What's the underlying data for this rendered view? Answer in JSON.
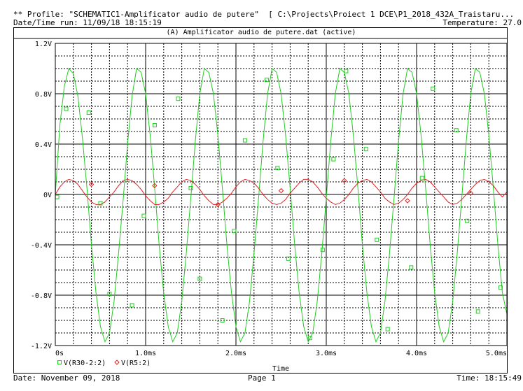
{
  "header": {
    "profile_line": "** Profile: \"SCHEMATIC1-Amplificator audio de putere\"  [ C:\\Projects\\Proiect 1 DCE\\P1_2018_432A_Traistaru...",
    "datetime_run": "Date/Time run: 11/09/18 18:15:19",
    "temperature": "Temperature: 27.0"
  },
  "footer": {
    "date": "Date: November 09, 2018",
    "page": "Page 1",
    "time": "Time: 18:15:49"
  },
  "chart_data": {
    "type": "line",
    "title": "(A) Amplificator audio de putere.dat (active)",
    "xlabel": "Time",
    "ylabel": "",
    "xlim": [
      0,
      5.0
    ],
    "ylim": [
      -1.2,
      1.2
    ],
    "x_unit": "ms",
    "x_ticks": [
      "0s",
      "1.0ms",
      "2.0ms",
      "3.0ms",
      "4.0ms",
      "5.0ms"
    ],
    "x_tick_values": [
      0,
      1,
      2,
      3,
      4,
      5
    ],
    "y_ticks": [
      "1.2V",
      "0.8V",
      "0.4V",
      "0V",
      "-0.4V",
      "-0.8V",
      "-1.2V"
    ],
    "y_tick_values": [
      1.2,
      0.8,
      0.4,
      0,
      -0.4,
      -0.8,
      -1.2
    ],
    "grid": true,
    "legend_position": "bottom-left",
    "series": [
      {
        "name": "V(R30-2:2)",
        "color": "#22cc22",
        "marker": "square",
        "x": [
          0.0,
          0.05,
          0.1,
          0.15,
          0.2,
          0.25,
          0.3,
          0.35,
          0.4,
          0.45,
          0.5,
          0.55,
          0.6,
          0.65,
          0.7,
          0.75,
          0.8,
          0.85,
          0.9,
          0.95,
          1.0,
          1.05,
          1.1,
          1.15,
          1.2,
          1.25,
          1.3,
          1.35,
          1.4,
          1.45,
          1.5,
          1.55,
          1.6,
          1.65,
          1.7,
          1.75,
          1.8,
          1.85,
          1.9,
          1.95,
          2.0,
          2.05,
          2.1,
          2.15,
          2.2,
          2.25,
          2.3,
          2.35,
          2.4,
          2.45,
          2.5,
          2.55,
          2.6,
          2.65,
          2.7,
          2.75,
          2.8,
          2.85,
          2.9,
          2.95,
          3.0,
          3.05,
          3.1,
          3.15,
          3.2,
          3.25,
          3.3,
          3.35,
          3.4,
          3.45,
          3.5,
          3.55,
          3.6,
          3.65,
          3.7,
          3.75,
          3.8,
          3.85,
          3.9,
          3.95,
          4.0,
          4.05,
          4.1,
          4.15,
          4.2,
          4.25,
          4.3,
          4.35,
          4.4,
          4.45,
          4.5,
          4.55,
          4.6,
          4.65,
          4.7,
          4.75,
          4.8,
          4.85,
          4.9,
          4.95,
          5.0
        ],
        "y": [
          0.0,
          0.55,
          0.86,
          1.0,
          0.96,
          0.78,
          0.45,
          0.05,
          -0.4,
          -0.78,
          -1.05,
          -1.17,
          -1.1,
          -0.85,
          -0.47,
          -0.05,
          0.4,
          0.78,
          1.0,
          0.97,
          0.8,
          0.47,
          0.05,
          -0.4,
          -0.78,
          -1.05,
          -1.17,
          -1.1,
          -0.85,
          -0.47,
          -0.03,
          0.42,
          0.8,
          1.0,
          0.97,
          0.8,
          0.47,
          0.05,
          -0.4,
          -0.78,
          -1.05,
          -1.17,
          -1.1,
          -0.85,
          -0.47,
          -0.03,
          0.42,
          0.8,
          1.0,
          0.97,
          0.8,
          0.47,
          0.05,
          -0.4,
          -0.78,
          -1.05,
          -1.17,
          -1.1,
          -0.85,
          -0.47,
          -0.03,
          0.42,
          0.8,
          1.0,
          0.97,
          0.8,
          0.47,
          0.05,
          -0.4,
          -0.78,
          -1.05,
          -1.17,
          -1.1,
          -0.85,
          -0.47,
          -0.03,
          0.42,
          0.8,
          1.0,
          0.97,
          0.8,
          0.47,
          0.05,
          -0.4,
          -0.78,
          -1.05,
          -1.17,
          -1.1,
          -0.85,
          -0.47,
          -0.03,
          0.42,
          0.8,
          1.0,
          0.97,
          0.8,
          0.47,
          0.05,
          -0.4,
          -0.78,
          -0.95
        ],
        "markers": [
          [
            0.02,
            -0.02
          ],
          [
            0.12,
            0.68
          ],
          [
            0.37,
            0.65
          ],
          [
            0.5,
            -0.07
          ],
          [
            0.6,
            -0.79
          ],
          [
            0.85,
            -0.88
          ],
          [
            0.98,
            -0.17
          ],
          [
            1.1,
            0.55
          ],
          [
            1.36,
            0.76
          ],
          [
            1.5,
            0.05
          ],
          [
            1.6,
            -0.67
          ],
          [
            1.85,
            -1.0
          ],
          [
            1.98,
            -0.29
          ],
          [
            2.1,
            0.43
          ],
          [
            2.34,
            0.91
          ],
          [
            2.46,
            0.21
          ],
          [
            2.58,
            -0.51
          ],
          [
            2.82,
            -1.14
          ],
          [
            2.96,
            -0.44
          ],
          [
            3.08,
            0.28
          ],
          [
            3.22,
            0.98
          ],
          [
            3.44,
            0.36
          ],
          [
            3.56,
            -0.36
          ],
          [
            3.68,
            -1.07
          ],
          [
            3.94,
            -0.58
          ],
          [
            4.06,
            0.13
          ],
          [
            4.18,
            0.84
          ],
          [
            4.44,
            0.51
          ],
          [
            4.56,
            -0.21
          ],
          [
            4.68,
            -0.93
          ],
          [
            4.93,
            -0.74
          ]
        ]
      },
      {
        "name": "V(R5:2)",
        "color": "#dd2222",
        "marker": "diamond",
        "x": [
          0.0,
          0.05,
          0.1,
          0.15,
          0.2,
          0.25,
          0.3,
          0.35,
          0.4,
          0.45,
          0.5,
          0.55,
          0.6,
          0.65,
          0.7,
          0.75,
          0.8,
          0.85,
          0.9,
          0.95,
          1.0,
          1.05,
          1.1,
          1.15,
          1.2,
          1.25,
          1.3,
          1.35,
          1.4,
          1.45,
          1.5,
          1.55,
          1.6,
          1.65,
          1.7,
          1.75,
          1.8,
          1.85,
          1.9,
          1.95,
          2.0,
          2.05,
          2.1,
          2.15,
          2.2,
          2.25,
          2.3,
          2.35,
          2.4,
          2.45,
          2.5,
          2.55,
          2.6,
          2.65,
          2.7,
          2.75,
          2.8,
          2.85,
          2.9,
          2.95,
          3.0,
          3.05,
          3.1,
          3.15,
          3.2,
          3.25,
          3.3,
          3.35,
          3.4,
          3.45,
          3.5,
          3.55,
          3.6,
          3.65,
          3.7,
          3.75,
          3.8,
          3.85,
          3.9,
          3.95,
          4.0,
          4.05,
          4.1,
          4.15,
          4.2,
          4.25,
          4.3,
          4.35,
          4.4,
          4.45,
          4.5,
          4.55,
          4.6,
          4.65,
          4.7,
          4.75,
          4.8,
          4.85,
          4.9,
          4.95,
          5.0
        ],
        "y": [
          0.0,
          0.06,
          0.1,
          0.12,
          0.11,
          0.08,
          0.03,
          -0.02,
          -0.06,
          -0.08,
          -0.08,
          -0.06,
          -0.02,
          0.02,
          0.07,
          0.11,
          0.12,
          0.11,
          0.08,
          0.04,
          -0.01,
          -0.05,
          -0.08,
          -0.08,
          -0.06,
          -0.03,
          0.02,
          0.06,
          0.1,
          0.12,
          0.11,
          0.08,
          0.04,
          -0.01,
          -0.05,
          -0.08,
          -0.08,
          -0.06,
          -0.03,
          0.01,
          0.06,
          0.1,
          0.12,
          0.11,
          0.09,
          0.05,
          0.0,
          -0.04,
          -0.07,
          -0.08,
          -0.07,
          -0.04,
          0.01,
          0.05,
          0.09,
          0.12,
          0.12,
          0.1,
          0.06,
          0.01,
          -0.03,
          -0.06,
          -0.08,
          -0.07,
          -0.04,
          0.0,
          0.05,
          0.09,
          0.11,
          0.12,
          0.1,
          0.06,
          0.02,
          -0.03,
          -0.06,
          -0.08,
          -0.07,
          -0.04,
          0.0,
          0.05,
          0.09,
          0.11,
          0.12,
          0.1,
          0.06,
          0.02,
          -0.02,
          -0.06,
          -0.08,
          -0.07,
          -0.04,
          0.0,
          0.04,
          0.08,
          0.11,
          0.12,
          0.1,
          0.07,
          0.02,
          -0.02,
          0.02
        ],
        "markers": [
          [
            0.4,
            0.08
          ],
          [
            1.1,
            0.07
          ],
          [
            1.8,
            -0.08
          ],
          [
            2.5,
            0.03
          ],
          [
            3.2,
            0.11
          ],
          [
            3.9,
            -0.05
          ],
          [
            4.6,
            0.01
          ]
        ]
      }
    ]
  }
}
